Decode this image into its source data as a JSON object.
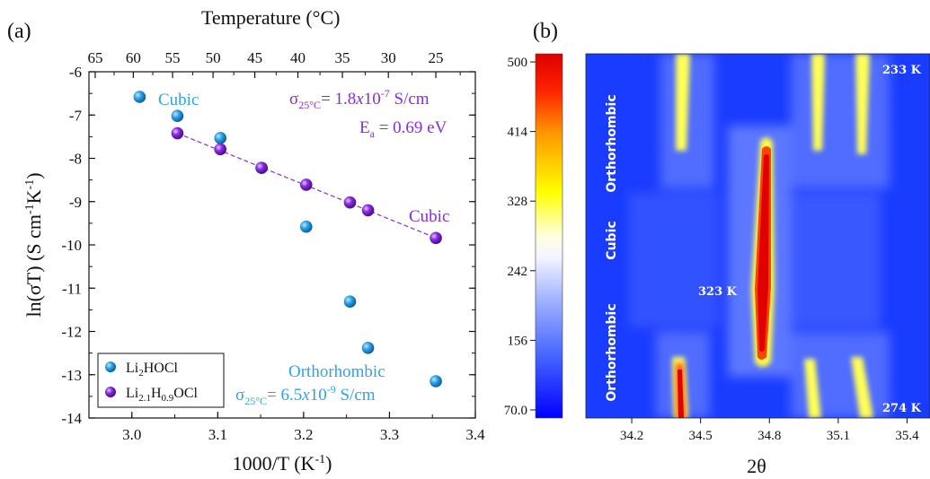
{
  "panel_a": {
    "letter": "(a)",
    "top_axis_title": "Temperature (°C)",
    "top_ticks": [
      "65",
      "60",
      "55",
      "50",
      "45",
      "40",
      "35",
      "30",
      "25"
    ],
    "annotations": {
      "cubic_blue": "Cubic",
      "cubic_purple": "Cubic",
      "orthorhombic_blue": "Orthorhombic",
      "sigma_purple": "σ25°C= 1.8x10-7 S/cm",
      "ea_purple": "Ea = 0.69 eV",
      "sigma_blue": "σ25°C= 6.5x10-9 S/cm"
    },
    "legend": [
      "Li2HOCl",
      "Li2.1H0.9OCl"
    ]
  },
  "panel_b": {
    "letter": "(b)",
    "colorbar_ticks": [
      "500",
      "414",
      "328",
      "242",
      "156",
      "70.0"
    ],
    "phase_labels": [
      "Orthorhombic",
      "Cubic",
      "Orthorhombic"
    ],
    "temp_labels": [
      "233 K",
      "323 K",
      "274 K"
    ]
  },
  "colors": {
    "blue_marker": "#2ea3e6",
    "purple_marker": "#8a2be2",
    "map_background": "#1a3cff",
    "peak_core": "#e00000",
    "peak_edge": "#ffff33"
  },
  "chart_data": [
    {
      "type": "scatter",
      "title": "",
      "xlabel": "1000/T (K-1)",
      "ylabel": "ln(σT) (S cm-1K-1)",
      "xlim": [
        2.95,
        3.4
      ],
      "ylim": [
        -14,
        -6
      ],
      "x_ticks": [
        "3.0",
        "3.1",
        "3.2",
        "3.3",
        "3.4"
      ],
      "y_ticks": [
        "-6",
        "-7",
        "-8",
        "-9",
        "-10",
        "-11",
        "-12",
        "-13",
        "-14"
      ],
      "series": [
        {
          "name": "Li2HOCl",
          "x": [
            3.009,
            3.053,
            3.103,
            3.151,
            3.203,
            3.254,
            3.275,
            3.354
          ],
          "y": [
            -6.58,
            -7.02,
            -7.53,
            -8.22,
            -9.58,
            -11.31,
            -12.38,
            -13.15
          ]
        },
        {
          "name": "Li2.1H0.9OCl",
          "x": [
            3.053,
            3.103,
            3.151,
            3.203,
            3.254,
            3.275,
            3.354
          ],
          "y": [
            -7.42,
            -7.79,
            -8.22,
            -8.61,
            -9.02,
            -9.2,
            -9.84
          ]
        }
      ],
      "fit_line": {
        "x": [
          3.053,
          3.354
        ],
        "y": [
          -7.42,
          -9.84
        ]
      },
      "top_axis": {
        "label": "Temperature (°C)",
        "ticks_celsius": [
          65,
          60,
          55,
          50,
          45,
          40,
          35,
          30,
          25
        ]
      },
      "grid": false,
      "legend": "bottom-left"
    },
    {
      "type": "heatmap",
      "xlabel": "2θ",
      "ylabel": "",
      "xlim": [
        34.0,
        35.5
      ],
      "x_ticks": [
        "34.2",
        "34.5",
        "34.8",
        "35.1",
        "35.4"
      ],
      "colorbar_ticks": [
        500,
        414,
        328,
        242,
        156,
        70.0
      ],
      "colorbar_range": [
        60,
        510
      ]
    }
  ]
}
